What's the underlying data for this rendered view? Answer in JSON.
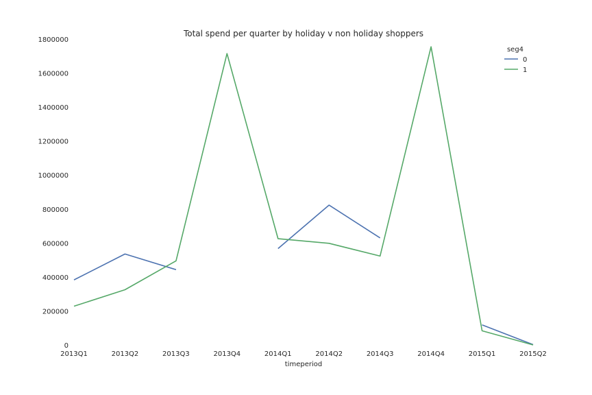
{
  "chart_data": {
    "type": "line",
    "title": "Total spend per quarter by holiday v non holiday shoppers",
    "xlabel": "timeperiod",
    "ylabel": "",
    "categories": [
      "2013Q1",
      "2013Q2",
      "2013Q3",
      "2013Q4",
      "2014Q1",
      "2014Q2",
      "2014Q3",
      "2014Q4",
      "2015Q1",
      "2015Q2"
    ],
    "ylim": [
      0,
      1800000
    ],
    "yticks": [
      "0",
      "200000",
      "400000",
      "600000",
      "800000",
      "1000000",
      "1200000",
      "1400000",
      "1600000",
      "1800000"
    ],
    "grid": false,
    "legend": {
      "title": "seg4",
      "placement": "top-right"
    },
    "series": [
      {
        "name": "0",
        "color": "#4c72b0",
        "values": [
          383000,
          535000,
          443000,
          null,
          567000,
          823000,
          630000,
          null,
          118000,
          2000
        ]
      },
      {
        "name": "1",
        "color": "#55a868",
        "values": [
          228000,
          325000,
          495000,
          1715000,
          625000,
          598000,
          523000,
          1755000,
          83000,
          0
        ]
      }
    ]
  }
}
